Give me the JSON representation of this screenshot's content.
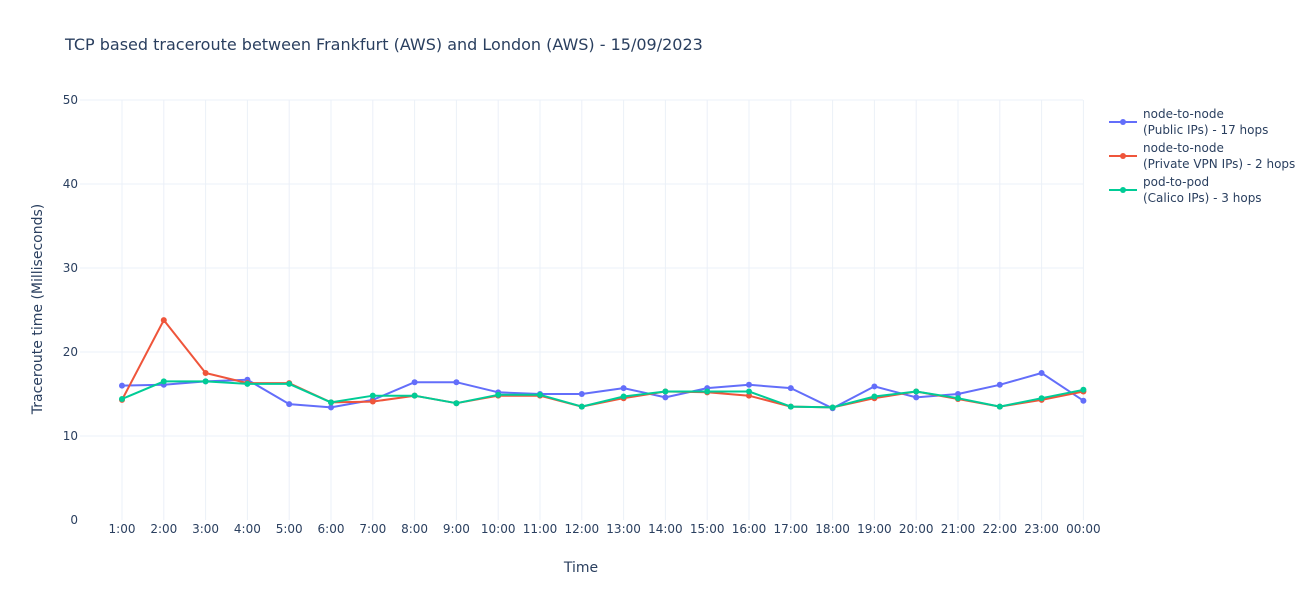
{
  "chart_data": {
    "type": "line",
    "title": "TCP based traceroute between Frankfurt (AWS) and London (AWS)   -   15/09/2023",
    "xlabel": "Time",
    "ylabel": "Traceroute time (Milliseconds)",
    "ylim": [
      0,
      50
    ],
    "yticks": [
      0,
      10,
      20,
      30,
      40,
      50
    ],
    "grid": true,
    "legend_position": "right",
    "categories": [
      "1:00",
      "2:00",
      "3:00",
      "4:00",
      "5:00",
      "6:00",
      "7:00",
      "8:00",
      "9:00",
      "10:00",
      "11:00",
      "12:00",
      "13:00",
      "14:00",
      "15:00",
      "16:00",
      "17:00",
      "18:00",
      "19:00",
      "20:00",
      "21:00",
      "22:00",
      "23:00",
      "00:00"
    ],
    "series": [
      {
        "name": "node-to-node (Public IPs) - 17 hops",
        "legend_lines": [
          "node-to-node",
          "(Public IPs) - 17 hops"
        ],
        "color": "#636efa",
        "values": [
          16.0,
          16.1,
          16.5,
          16.7,
          13.8,
          13.4,
          14.3,
          16.4,
          16.4,
          15.2,
          15.0,
          15.0,
          15.7,
          14.6,
          15.7,
          16.1,
          15.7,
          13.3,
          15.9,
          14.6,
          15.0,
          16.1,
          17.5,
          14.2
        ]
      },
      {
        "name": "node-to-node (Private VPN IPs) - 2 hops",
        "legend_lines": [
          "node-to-node",
          "(Private VPN IPs) - 2 hops"
        ],
        "color": "#ef553b",
        "values": [
          14.3,
          23.8,
          17.5,
          16.3,
          16.3,
          14.0,
          14.1,
          14.8,
          13.9,
          14.8,
          14.8,
          13.5,
          14.5,
          15.3,
          15.2,
          14.8,
          13.5,
          13.4,
          14.5,
          15.3,
          14.4,
          13.5,
          14.3,
          15.3
        ]
      },
      {
        "name": "pod-to-pod (Calico IPs) - 3 hops",
        "legend_lines": [
          "pod-to-pod",
          "(Calico IPs) - 3 hops"
        ],
        "color": "#00cc96",
        "values": [
          14.4,
          16.5,
          16.5,
          16.2,
          16.2,
          14.0,
          14.8,
          14.8,
          13.9,
          14.9,
          14.9,
          13.5,
          14.7,
          15.3,
          15.3,
          15.3,
          13.5,
          13.4,
          14.7,
          15.3,
          14.5,
          13.5,
          14.5,
          15.5
        ]
      }
    ]
  }
}
